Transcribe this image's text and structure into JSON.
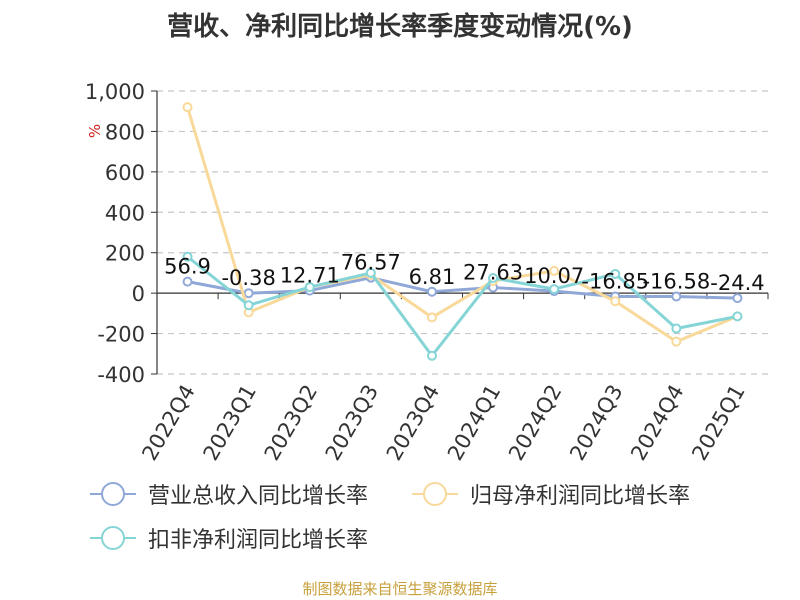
{
  "chart_data": {
    "type": "line",
    "title": "营收、净利同比增长率季度变动情况(%)",
    "ylabel": "%",
    "ylim": [
      -400,
      1000
    ],
    "yticks": [
      -400,
      -200,
      0,
      200,
      400,
      600,
      800,
      1000
    ],
    "ytick_labels": [
      "-400",
      "-200",
      "0",
      "200",
      "400",
      "600",
      "800",
      "1,000"
    ],
    "categories": [
      "2022Q4",
      "2023Q1",
      "2023Q2",
      "2023Q3",
      "2023Q4",
      "2024Q1",
      "2024Q2",
      "2024Q3",
      "2024Q4",
      "2025Q1"
    ],
    "series": [
      {
        "name": "营业总收入同比增长率",
        "color": "#8fa8d8",
        "values": [
          56.9,
          -0.38,
          12.71,
          76.57,
          6.81,
          27.63,
          10.07,
          -16.85,
          -16.58,
          -24.4
        ],
        "labels": [
          "56.9",
          "-0.38",
          "12.71",
          "76.57",
          "6.81",
          "27.63",
          "10.07",
          "-16.85",
          "-16.58",
          "-24.4"
        ]
      },
      {
        "name": "归母净利润同比增长率",
        "color": "#f9d99a",
        "values": [
          920,
          -95,
          30,
          90,
          -120,
          60,
          110,
          -40,
          -240,
          -115
        ]
      },
      {
        "name": "扣非净利润同比增长率",
        "color": "#85d5d7",
        "values": [
          180,
          -60,
          30,
          100,
          -310,
          75,
          20,
          95,
          -175,
          -115
        ]
      }
    ],
    "grid": true,
    "legend_position": "bottom-left"
  },
  "source_note": "制图数据来自恒生聚源数据库"
}
